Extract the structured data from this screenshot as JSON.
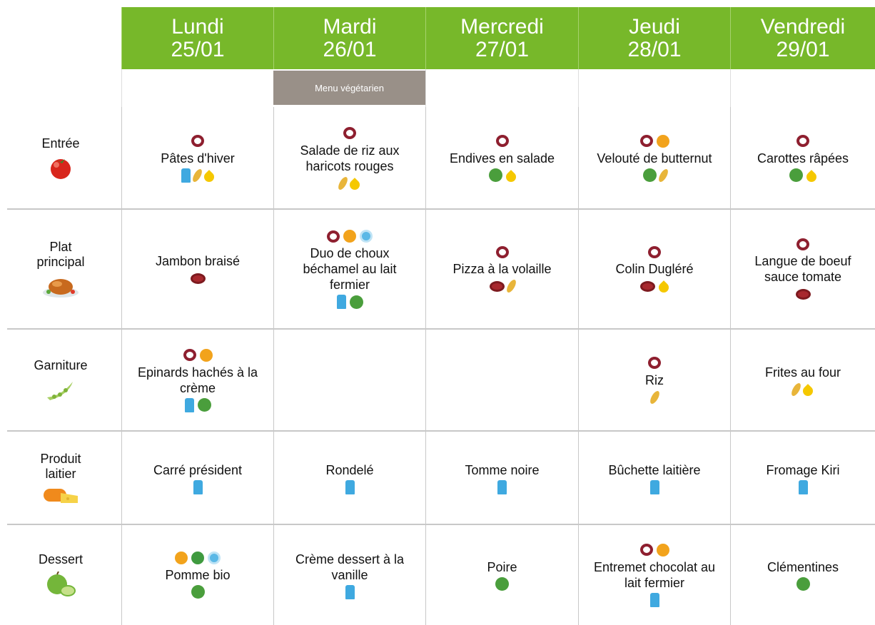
{
  "header": {
    "days": [
      {
        "day": "Lundi",
        "date": "25/01"
      },
      {
        "day": "Mardi",
        "date": "26/01"
      },
      {
        "day": "Mercredi",
        "date": "27/01"
      },
      {
        "day": "Jeudi",
        "date": "28/01"
      },
      {
        "day": "Vendredi",
        "date": "29/01"
      }
    ],
    "note": "Menu végétarien"
  },
  "rows": [
    {
      "label": "Entrée",
      "dishes": [
        "Pâtes d'hiver",
        "Salade de riz aux haricots rouges",
        "Endives en salade",
        "Velouté de butternut",
        "Carottes râpées"
      ]
    },
    {
      "label": "Plat principal",
      "dishes": [
        "Jambon braisé",
        "Duo de choux béchamel au lait fermier",
        "Pizza à la volaille",
        "Colin Dugléré",
        "Langue de boeuf sauce tomate"
      ]
    },
    {
      "label": "Garniture",
      "dishes": [
        "Epinards hachés à la crème",
        null,
        null,
        "Riz",
        "Frites au four"
      ]
    },
    {
      "label": "Produit laitier",
      "dishes": [
        "Carré président",
        "Rondelé",
        "Tomme noire",
        "Bûchette laitière",
        "Fromage Kiri"
      ]
    },
    {
      "label": "Dessert",
      "dishes": [
        "Pomme bio",
        "Crème dessert à la vanille",
        "Poire",
        "Entremet chocolat au lait fermier",
        "Clémentines"
      ]
    }
  ]
}
